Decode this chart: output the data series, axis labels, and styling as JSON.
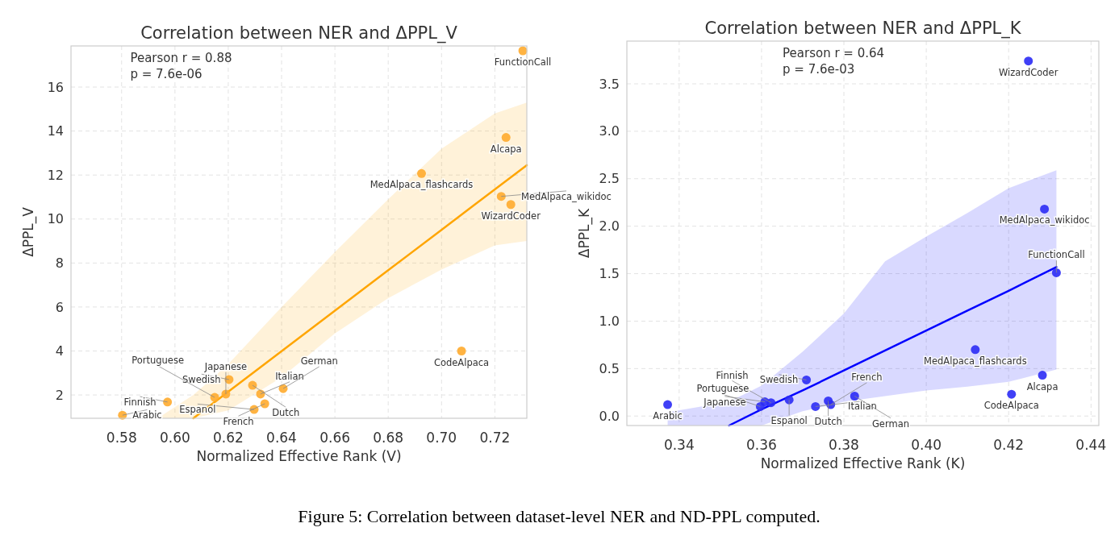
{
  "chart_data": [
    {
      "type": "scatter",
      "title": "Correlation between NER and ΔPPL_V",
      "xlabel": "Normalized Effective Rank (V)",
      "ylabel": "ΔPPL_V",
      "xlim": [
        0.561,
        0.732
      ],
      "xticks": [
        0.58,
        {
          "value": 0.6,
          "label": "0.60"
        },
        0.62,
        0.64,
        0.66,
        0.68,
        {
          "value": 0.7,
          "label": "0.70"
        },
        0.72
      ],
      "ylim": [
        0.94,
        17.87
      ],
      "yticks": [
        2,
        4,
        6,
        8,
        10,
        12,
        14,
        16
      ],
      "grid": true,
      "series": [
        {
          "type": "scatter",
          "color": "#ffab2e",
          "marker": "circle",
          "x": [
            0.7305,
            0.7242,
            0.6925,
            0.7224,
            0.726,
            0.7075,
            0.6203,
            0.5803,
            0.5972,
            0.6191,
            0.6149,
            0.6291,
            0.6321,
            0.6406,
            0.6337,
            0.6297
          ],
          "values": [
            17.65,
            13.71,
            12.07,
            11.03,
            10.66,
            4.0,
            2.7,
            1.08,
            1.68,
            2.04,
            1.89,
            2.44,
            2.04,
            2.29,
            1.6,
            1.34
          ]
        },
        {
          "type": "line",
          "color": "#ffa500",
          "x": [
            0.5935,
            0.6069,
            0.62,
            0.64,
            0.66,
            0.68,
            0.7,
            0.72,
            0.732
          ],
          "values": [
            null,
            0.94,
            2.15,
            3.99,
            5.83,
            7.67,
            9.51,
            11.35,
            12.45
          ],
          "upper": [
            0.94,
            2.0,
            3.4,
            6.0,
            8.5,
            10.9,
            13.2,
            14.8,
            15.3
          ],
          "lower": [
            0.94,
            0.94,
            1.3,
            2.8,
            4.8,
            6.4,
            7.7,
            8.8,
            9.0
          ]
        }
      ],
      "annotations": [
        "Pearson r = 0.88\np = 7.6e-06",
        {
          "text": "FunctionCall",
          "x": 0.7305,
          "y": 17.65
        },
        {
          "text": "Alcapa",
          "x": 0.7242,
          "y": 13.71
        },
        {
          "text": "MedAlpaca_flashcards",
          "x": 0.6925,
          "y": 12.07
        },
        {
          "text": "MedAlpaca_wikidoc",
          "x": 0.7224,
          "y": 11.03
        },
        {
          "text": "WizardCoder",
          "x": 0.726,
          "y": 10.66
        },
        {
          "text": "CodeAlpaca",
          "x": 0.7075,
          "y": 4.0
        },
        {
          "text": "Swedish",
          "x": 0.6203,
          "y": 2.7
        },
        {
          "text": "Arabic",
          "x": 0.5803,
          "y": 1.08
        },
        {
          "text": "Finnish",
          "x": 0.5972,
          "y": 1.68
        },
        {
          "text": "Japanese",
          "x": 0.6191,
          "y": 2.04
        },
        {
          "text": "Portuguese",
          "x": 0.6149,
          "y": 1.89
        },
        {
          "text": "Dutch",
          "x": 0.6291,
          "y": 2.44
        },
        {
          "text": "Italian",
          "x": 0.6321,
          "y": 2.04
        },
        {
          "text": "German",
          "x": 0.6406,
          "y": 2.29
        },
        {
          "text": "French",
          "x": 0.6337,
          "y": 1.6
        },
        {
          "text": "Espanol",
          "x": 0.6297,
          "y": 1.34
        }
      ]
    },
    {
      "type": "scatter",
      "title": "Correlation between NER and ΔPPL_K",
      "xlabel": "Normalized Effective Rank (K)",
      "ylabel": "ΔPPL_K",
      "xlim": [
        0.3273,
        0.4419
      ],
      "xticks": [
        0.34,
        0.36,
        0.38,
        {
          "value": 0.4,
          "label": "0.40"
        },
        0.42,
        0.44
      ],
      "ylim": [
        -0.1,
        3.95
      ],
      "yticks": [
        {
          "value": 0,
          "label": "0.0"
        },
        0.5,
        {
          "value": 1,
          "label": "1.0"
        },
        1.5,
        {
          "value": 2,
          "label": "2.0"
        },
        2.5,
        {
          "value": 3,
          "label": "3.0"
        },
        3.5
      ],
      "grid": true,
      "series": [
        {
          "type": "scatter",
          "color": "#2b2bf5",
          "marker": "circle",
          "x": [
            0.4248,
            0.4287,
            0.4316,
            0.4119,
            0.4282,
            0.4207,
            0.3372,
            0.3709,
            0.3667,
            0.3608,
            0.3623,
            0.3597,
            0.3762,
            0.3768,
            0.3731,
            0.3826
          ],
          "values": [
            3.74,
            2.18,
            1.51,
            0.7,
            0.43,
            0.23,
            0.12,
            0.38,
            0.17,
            0.15,
            0.14,
            0.1,
            0.16,
            0.12,
            0.1,
            0.21
          ]
        },
        {
          "type": "line",
          "color": "#0000ff",
          "x": [
            0.3372,
            0.3521,
            0.36,
            0.37,
            0.38,
            0.39,
            0.4,
            0.41,
            0.42,
            0.4316
          ],
          "values": [
            null,
            -0.1,
            0.07,
            0.27,
            0.48,
            0.69,
            0.9,
            1.11,
            1.32,
            1.57
          ],
          "upper": [
            0.04,
            0.15,
            0.32,
            0.68,
            1.08,
            1.63,
            1.89,
            2.14,
            2.4,
            2.59
          ],
          "lower": [
            -0.1,
            -0.1,
            -0.1,
            0.05,
            0.15,
            0.21,
            0.27,
            0.31,
            0.36,
            0.49
          ]
        }
      ],
      "annotations": [
        "Pearson r = 0.64\np = 7.6e-03",
        {
          "text": "WizardCoder",
          "x": 0.4248,
          "y": 3.74
        },
        {
          "text": "MedAlpaca_wikidoc",
          "x": 0.4287,
          "y": 2.18
        },
        {
          "text": "FunctionCall",
          "x": 0.4316,
          "y": 1.51
        },
        {
          "text": "MedAlpaca_flashcards",
          "x": 0.4119,
          "y": 0.7
        },
        {
          "text": "Alcapa",
          "x": 0.4282,
          "y": 0.43
        },
        {
          "text": "CodeAlpaca",
          "x": 0.4207,
          "y": 0.23
        },
        {
          "text": "Arabic",
          "x": 0.3372,
          "y": 0.12
        },
        {
          "text": "Swedish",
          "x": 0.3709,
          "y": 0.38
        },
        {
          "text": "Espanol",
          "x": 0.3667,
          "y": 0.17
        },
        {
          "text": "Japanese",
          "x": 0.3608,
          "y": 0.15
        },
        {
          "text": "Finnish",
          "x": 0.3623,
          "y": 0.14
        },
        {
          "text": "Portuguese",
          "x": 0.3597,
          "y": 0.1
        },
        {
          "text": "Dutch",
          "x": 0.3762,
          "y": 0.16
        },
        {
          "text": "French",
          "x": 0.3768,
          "y": 0.12
        },
        {
          "text": "Italian",
          "x": 0.3731,
          "y": 0.1
        },
        {
          "text": "German",
          "x": 0.3826,
          "y": 0.21
        },
        "Figure 5: Correlation between dataset-level NER and ND-PPL computed."
      ]
    }
  ]
}
